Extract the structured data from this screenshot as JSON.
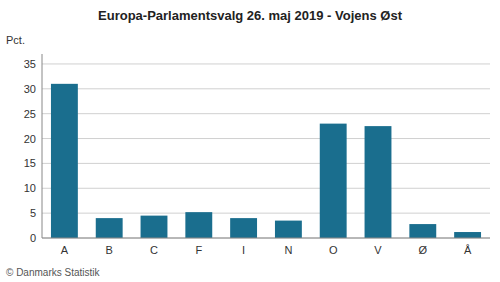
{
  "chart_data": {
    "type": "bar",
    "title": "Europa-Parlamentsvalg 26. maj 2019 - Vojens Øst",
    "ylabel": "Pct.",
    "footer": "© Danmarks Statistik",
    "categories": [
      "A",
      "B",
      "C",
      "F",
      "I",
      "N",
      "O",
      "V",
      "Ø",
      "Å"
    ],
    "values": [
      31.0,
      4.0,
      4.5,
      5.2,
      4.0,
      3.5,
      23.0,
      22.5,
      2.8,
      1.2
    ],
    "color": "#1a6e8e",
    "ylim": [
      0,
      37
    ],
    "yticks": [
      0,
      5,
      10,
      15,
      20,
      25,
      30,
      35
    ],
    "grid": true
  }
}
